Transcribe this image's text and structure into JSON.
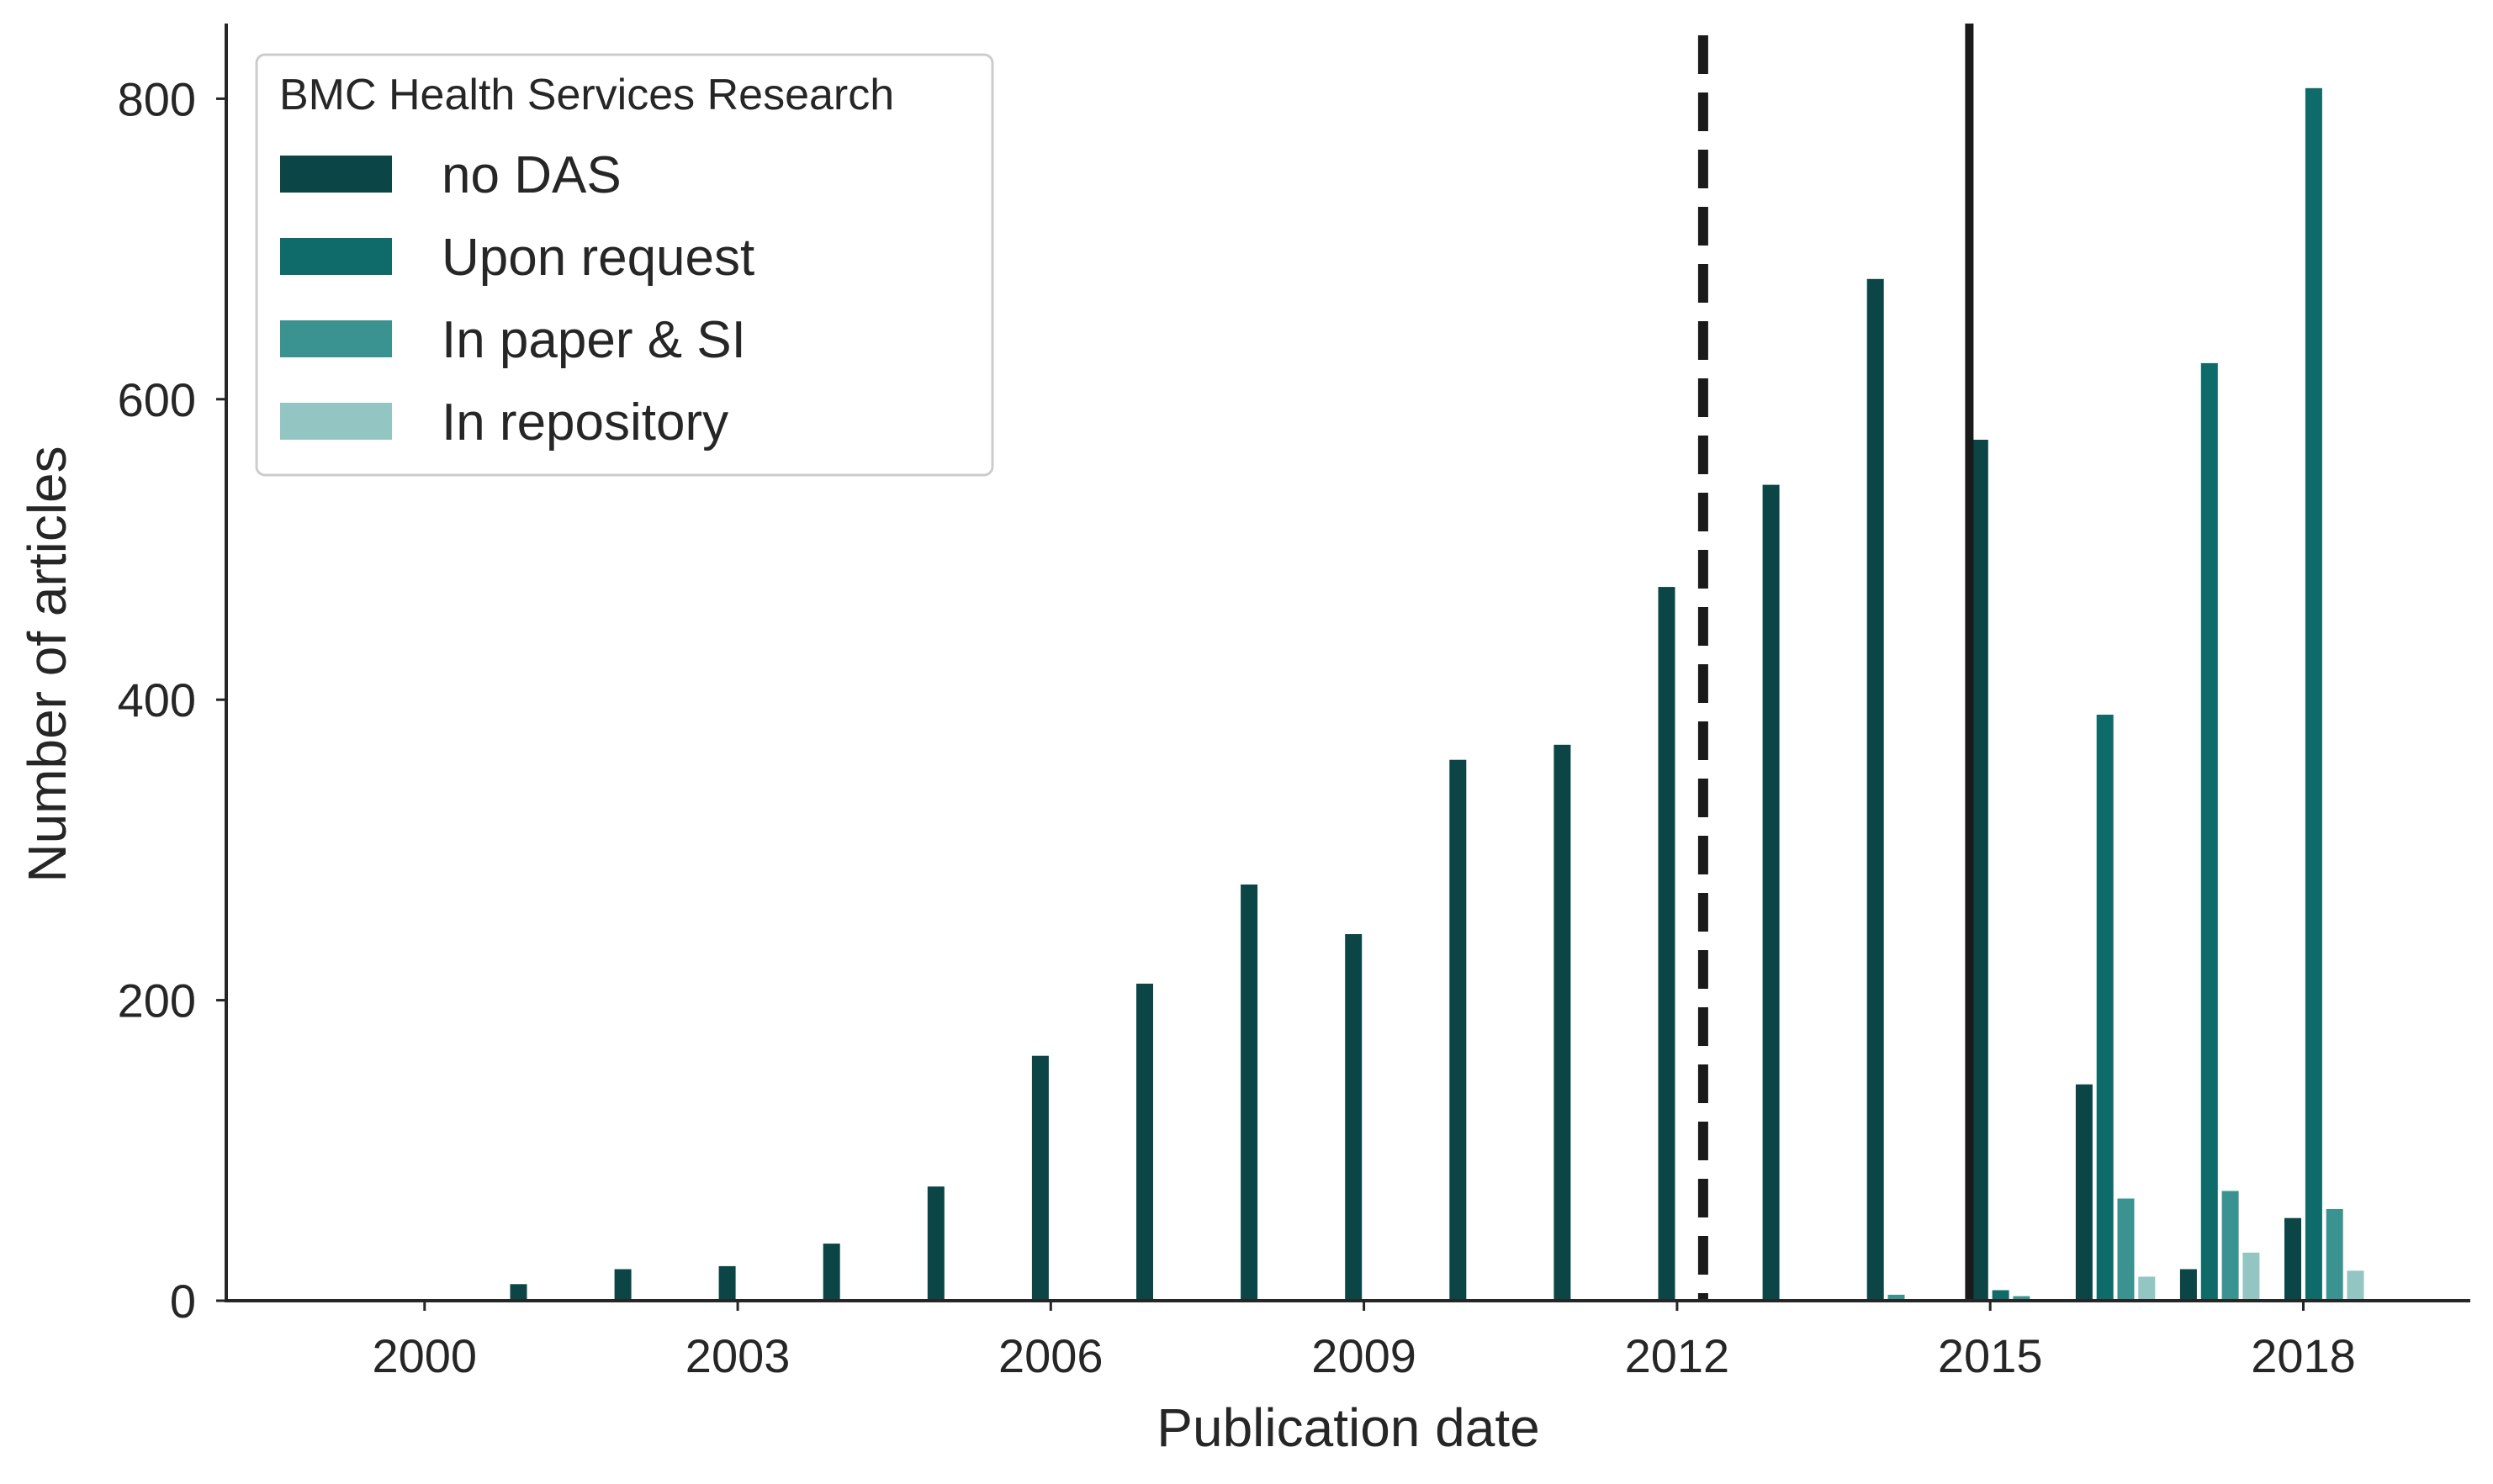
{
  "chart_data": {
    "type": "bar",
    "title": "",
    "xlabel": "Publication date",
    "ylabel": "Number of articles",
    "ylim": [
      0,
      850
    ],
    "yticks": [
      0,
      200,
      400,
      600,
      800
    ],
    "xlim": [
      1998.1,
      2019.6
    ],
    "xticks": [
      2000,
      2003,
      2006,
      2009,
      2012,
      2015,
      2018
    ],
    "xtick_labels": [
      "2000",
      "2003",
      "2006",
      "2009",
      "2012",
      "2015",
      "2018"
    ],
    "grid": false,
    "legend": {
      "title": "BMC Health Services Research",
      "position": "top-left"
    },
    "series": [
      {
        "name": "no DAS",
        "color": "#0b4545",
        "points": [
          {
            "x": 2000.9,
            "y": 11
          },
          {
            "x": 2001.9,
            "y": 21
          },
          {
            "x": 2002.9,
            "y": 23
          },
          {
            "x": 2003.9,
            "y": 38
          },
          {
            "x": 2004.9,
            "y": 76
          },
          {
            "x": 2005.9,
            "y": 163
          },
          {
            "x": 2006.9,
            "y": 211
          },
          {
            "x": 2007.9,
            "y": 277
          },
          {
            "x": 2008.9,
            "y": 244
          },
          {
            "x": 2009.9,
            "y": 360
          },
          {
            "x": 2010.9,
            "y": 370
          },
          {
            "x": 2011.9,
            "y": 475
          },
          {
            "x": 2012.9,
            "y": 543
          },
          {
            "x": 2013.9,
            "y": 680
          },
          {
            "x": 2014.9,
            "y": 573
          },
          {
            "x": 2015.9,
            "y": 144
          },
          {
            "x": 2016.9,
            "y": 21
          },
          {
            "x": 2017.9,
            "y": 55
          }
        ]
      },
      {
        "name": "Upon request",
        "color": "#0f6b6a",
        "points": [
          {
            "x": 2015.1,
            "y": 7
          },
          {
            "x": 2016.1,
            "y": 390
          },
          {
            "x": 2017.1,
            "y": 624
          },
          {
            "x": 2018.1,
            "y": 807
          }
        ]
      },
      {
        "name": "In paper & SI",
        "color": "#3a9390",
        "points": [
          {
            "x": 2014.1,
            "y": 4
          },
          {
            "x": 2015.3,
            "y": 3
          },
          {
            "x": 2016.3,
            "y": 68
          },
          {
            "x": 2017.3,
            "y": 73
          },
          {
            "x": 2018.3,
            "y": 61
          }
        ]
      },
      {
        "name": "In repository",
        "color": "#93c6c3",
        "points": [
          {
            "x": 2016.5,
            "y": 16
          },
          {
            "x": 2017.5,
            "y": 32
          },
          {
            "x": 2018.5,
            "y": 20
          }
        ]
      }
    ],
    "vlines": [
      {
        "x": 2012.25,
        "style": "dashed",
        "color": "#1a1a1a"
      },
      {
        "x": 2014.8,
        "style": "solid",
        "color": "#1a1a1a"
      }
    ]
  }
}
